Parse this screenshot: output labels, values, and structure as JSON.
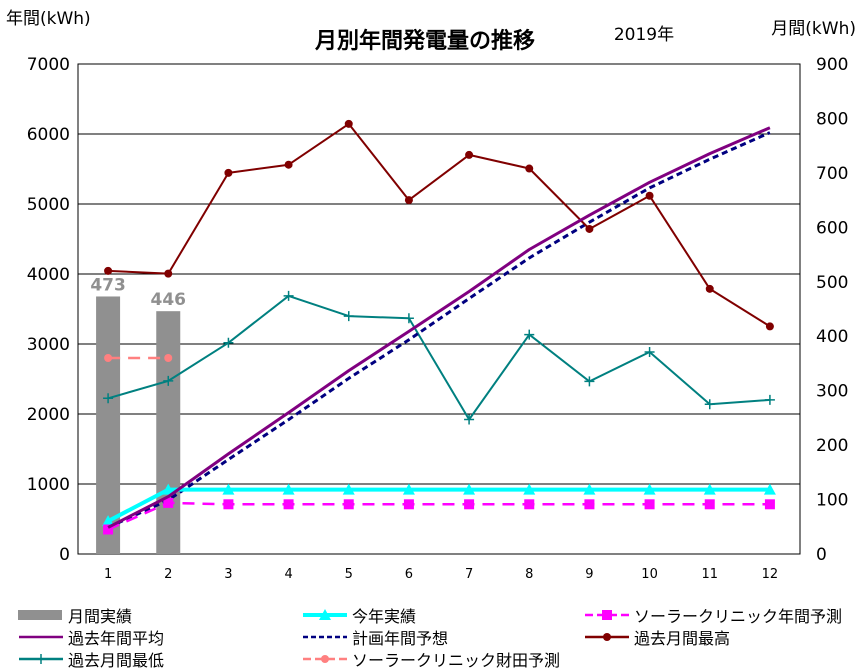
{
  "chart_data": {
    "type": "bar+line",
    "title": "月別年間発電量の推移",
    "subtitle": "2019年",
    "left_axis_label": "年間(kWh)",
    "right_axis_label": "月間(kWh)",
    "categories": [
      "1",
      "2",
      "3",
      "4",
      "5",
      "6",
      "7",
      "8",
      "9",
      "10",
      "11",
      "12"
    ],
    "left_ylim": [
      0,
      7000
    ],
    "left_ticks": [
      "0",
      "1000",
      "2000",
      "3000",
      "4000",
      "5000",
      "6000",
      "7000"
    ],
    "right_ylim": [
      0,
      900
    ],
    "right_ticks": [
      "0",
      "100",
      "200",
      "300",
      "400",
      "500",
      "600",
      "700",
      "800",
      "900"
    ],
    "grid": true,
    "legend_position": "bottom",
    "bars": {
      "name": "月間実績",
      "axis": "right",
      "color": "#909090",
      "values": [
        473,
        446
      ],
      "data_labels": [
        "473",
        "446"
      ]
    },
    "series": [
      {
        "name": "今年実績",
        "axis": "left",
        "color": "#00ffff",
        "style": "solid-thick",
        "marker": "triangle",
        "values": [
          470,
          920,
          920,
          920,
          920,
          920,
          920,
          920,
          920,
          920,
          920,
          920
        ]
      },
      {
        "name": "ソーラークリニック年間予測",
        "axis": "left",
        "color": "#ff00ff",
        "style": "dash",
        "marker": "square",
        "values": [
          350,
          730,
          710,
          710,
          710,
          710,
          710,
          710,
          710,
          710,
          710,
          710
        ]
      },
      {
        "name": "過去年間平均",
        "axis": "left",
        "color": "#800080",
        "style": "solid",
        "marker": "none",
        "values": [
          380,
          820,
          1430,
          2020,
          2620,
          3180,
          3750,
          4350,
          4840,
          5310,
          5720,
          6090
        ]
      },
      {
        "name": "計画年間予想",
        "axis": "left",
        "color": "#000080",
        "style": "dash",
        "marker": "none",
        "values": [
          380,
          770,
          1350,
          1920,
          2510,
          3060,
          3650,
          4230,
          4740,
          5230,
          5640,
          6020
        ]
      },
      {
        "name": "過去月間最高",
        "axis": "right",
        "color": "#800000",
        "style": "solid",
        "marker": "circle",
        "values": [
          520,
          515,
          700,
          715,
          790,
          650,
          733,
          708,
          597,
          658,
          487,
          418
        ]
      },
      {
        "name": "過去月間最低",
        "axis": "right",
        "color": "#008080",
        "style": "solid",
        "marker": "plus",
        "values": [
          286,
          318,
          388,
          474,
          437,
          433,
          247,
          403,
          317,
          371,
          275,
          283
        ]
      },
      {
        "name": "ソーラークリニック財田予測",
        "axis": "right",
        "color": "#ff8080",
        "style": "dash",
        "marker": "circle",
        "values": [
          360,
          360,
          null,
          null,
          null,
          null,
          null,
          null,
          null,
          null,
          null,
          null
        ]
      }
    ]
  },
  "legend": {
    "items": [
      {
        "label": "月間実績",
        "color": "#909090",
        "kind": "bar"
      },
      {
        "label": "今年実績",
        "color": "#00ffff",
        "kind": "solid-thick",
        "marker": "triangle"
      },
      {
        "label": "ソーラークリニック年間予測",
        "color": "#ff00ff",
        "kind": "dash",
        "marker": "square"
      },
      {
        "label": "過去年間平均",
        "color": "#800080",
        "kind": "solid",
        "marker": "none"
      },
      {
        "label": "計画年間予想",
        "color": "#000080",
        "kind": "dash",
        "marker": "none"
      },
      {
        "label": "過去月間最高",
        "color": "#800000",
        "kind": "solid",
        "marker": "circle"
      },
      {
        "label": "過去月間最低",
        "color": "#008080",
        "kind": "solid",
        "marker": "plus"
      },
      {
        "label": "ソーラークリニック財田予測",
        "color": "#ff8080",
        "kind": "dash",
        "marker": "circle"
      }
    ]
  }
}
